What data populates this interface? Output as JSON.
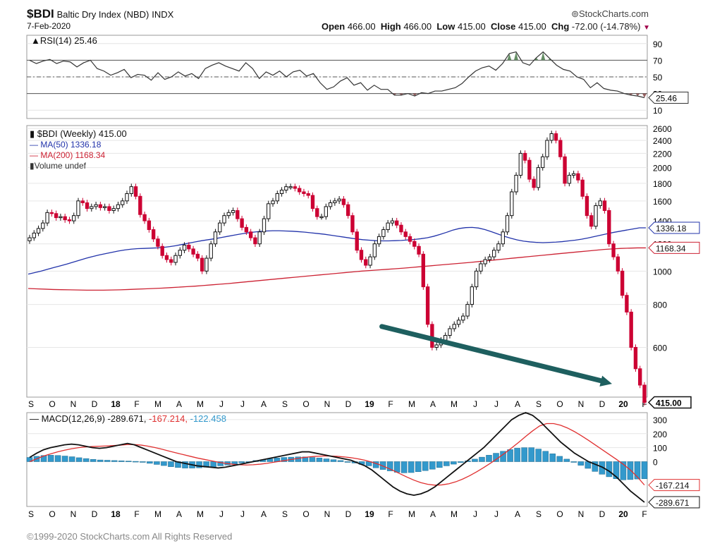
{
  "header": {
    "symbol": "$BDI",
    "name": "Baltic Dry Index (NBD)",
    "exchange": "INDX",
    "date": "7-Feb-2020",
    "brand": "StockCharts.com",
    "open_label": "Open",
    "open": "466.00",
    "high_label": "High",
    "high": "466.00",
    "low_label": "Low",
    "low": "415.00",
    "close_label": "Close",
    "close": "415.00",
    "chg_label": "Chg",
    "chg": "-72.00 (-14.78%)"
  },
  "footer": {
    "copyright": "©1999-2020 StockCharts.com All Rights Reserved"
  },
  "colors": {
    "up": "#ffffff",
    "down": "#cc0033",
    "ma50": "#2233aa",
    "ma200": "#cc2233",
    "macd": "#111111",
    "signal": "#e03030",
    "hist": "#3399cc",
    "arrow": "#1e5f5f",
    "rsi_fill": "#4a7a4a"
  },
  "chart_data": [
    {
      "type": "line",
      "title": "RSI(14) 25.46",
      "ylim": [
        0,
        100
      ],
      "ticks": [
        10,
        30,
        50,
        70,
        90
      ],
      "reference_lines": [
        30,
        50,
        70
      ],
      "last_label": "25.46",
      "values": [
        70,
        66,
        69,
        71,
        66,
        69,
        68,
        62,
        67,
        70,
        60,
        57,
        52,
        55,
        59,
        49,
        53,
        52,
        46,
        55,
        47,
        50,
        56,
        51,
        54,
        48,
        60,
        64,
        67,
        63,
        60,
        57,
        67,
        60,
        48,
        56,
        52,
        57,
        50,
        56,
        58,
        51,
        54,
        43,
        35,
        38,
        45,
        49,
        40,
        43,
        34,
        40,
        35,
        35,
        28,
        28,
        30,
        27,
        31,
        30,
        33,
        33,
        35,
        37,
        42,
        50,
        57,
        61,
        63,
        58,
        66,
        78,
        80,
        67,
        64,
        73,
        80,
        72,
        64,
        59,
        57,
        50,
        47,
        37,
        43,
        36,
        34,
        33,
        30,
        28,
        27,
        25
      ]
    },
    {
      "type": "candlestick",
      "title": "$BDI (Weekly) 415.00",
      "scale": "log",
      "ylim": [
        430,
        2650
      ],
      "ticks": [
        600,
        800,
        1000,
        1200,
        1400,
        1600,
        1800,
        2000,
        2200,
        2400,
        2600
      ],
      "series": [
        {
          "name": "MA(50) 1336.18",
          "last_label": "1336.18"
        },
        {
          "name": "MA(200) 1168.34",
          "last_label": "1168.34"
        },
        {
          "name": "Volume undef"
        }
      ],
      "last_label": "415.00",
      "close": [
        1250,
        1290,
        1330,
        1380,
        1480,
        1470,
        1430,
        1440,
        1410,
        1400,
        1450,
        1600,
        1580,
        1520,
        1540,
        1560,
        1530,
        1540,
        1500,
        1520,
        1560,
        1600,
        1680,
        1760,
        1650,
        1460,
        1400,
        1320,
        1240,
        1180,
        1110,
        1080,
        1060,
        1110,
        1150,
        1190,
        1160,
        1120,
        1090,
        1000,
        1090,
        1200,
        1300,
        1380,
        1450,
        1480,
        1500,
        1420,
        1340,
        1300,
        1250,
        1200,
        1300,
        1420,
        1570,
        1600,
        1680,
        1720,
        1760,
        1760,
        1740,
        1700,
        1680,
        1660,
        1520,
        1440,
        1440,
        1540,
        1580,
        1600,
        1620,
        1560,
        1450,
        1300,
        1150,
        1080,
        1040,
        1100,
        1200,
        1260,
        1320,
        1380,
        1400,
        1360,
        1300,
        1260,
        1220,
        1180,
        1120,
        900,
        700,
        600,
        610,
        630,
        650,
        680,
        700,
        720,
        740,
        800,
        900,
        1000,
        1050,
        1080,
        1100,
        1150,
        1200,
        1300,
        1450,
        1700,
        1900,
        2200,
        2100,
        1850,
        1750,
        2000,
        2150,
        2400,
        2510,
        2400,
        2150,
        1800,
        1900,
        1920,
        1840,
        1650,
        1450,
        1350,
        1550,
        1600,
        1500,
        1200,
        1100,
        1000,
        850,
        760,
        600,
        520,
        466,
        415
      ],
      "ma50": [
        980,
        990,
        1000,
        1012,
        1024,
        1036,
        1048,
        1062,
        1076,
        1090,
        1102,
        1114,
        1124,
        1134,
        1144,
        1152,
        1158,
        1162,
        1164,
        1166,
        1168,
        1172,
        1178,
        1186,
        1196,
        1206,
        1216,
        1226,
        1234,
        1242,
        1252,
        1262,
        1272,
        1282,
        1290,
        1298,
        1304,
        1308,
        1310,
        1310,
        1308,
        1306,
        1302,
        1298,
        1292,
        1286,
        1280,
        1272,
        1264,
        1256,
        1248,
        1240,
        1234,
        1230,
        1226,
        1224,
        1224,
        1226,
        1228,
        1232,
        1236,
        1242,
        1250,
        1262,
        1278,
        1296,
        1316,
        1330,
        1338,
        1340,
        1334,
        1320,
        1302,
        1282,
        1262,
        1246,
        1232,
        1222,
        1216,
        1212,
        1210,
        1212,
        1214,
        1218,
        1224,
        1230,
        1238,
        1248,
        1260,
        1272,
        1284,
        1296,
        1306,
        1316,
        1326,
        1336,
        1336
      ],
      "ma200": [
        890,
        888,
        886,
        884,
        883,
        882,
        881,
        880,
        880,
        880,
        881,
        882,
        884,
        886,
        888,
        890,
        892,
        895,
        898,
        901,
        904,
        908,
        912,
        916,
        920,
        925,
        930,
        935,
        940,
        945,
        950,
        955,
        960,
        965,
        970,
        975,
        980,
        985,
        990,
        995,
        1000,
        1004,
        1008,
        1012,
        1016,
        1020,
        1025,
        1030,
        1035,
        1040,
        1045,
        1050,
        1055,
        1060,
        1066,
        1072,
        1078,
        1084,
        1090,
        1096,
        1102,
        1108,
        1114,
        1120,
        1126,
        1132,
        1138,
        1144,
        1150,
        1156,
        1160,
        1164,
        1166,
        1168,
        1168
      ]
    },
    {
      "type": "line",
      "title": "MACD(12,26,9)",
      "series": [
        {
          "name": "-289.671",
          "last_label": "-289.671"
        },
        {
          "name": "-167.214",
          "last_label": "-167.214"
        },
        {
          "name": "-122.458"
        }
      ],
      "ylim": [
        -320,
        350
      ],
      "ticks": [
        300,
        200,
        100,
        0
      ],
      "macd": [
        30,
        60,
        85,
        100,
        110,
        120,
        125,
        120,
        110,
        100,
        95,
        100,
        110,
        120,
        130,
        120,
        100,
        80,
        60,
        40,
        20,
        0,
        -10,
        -20,
        -30,
        -35,
        -40,
        -45,
        -40,
        -30,
        -20,
        -10,
        0,
        10,
        20,
        30,
        40,
        50,
        60,
        70,
        70,
        60,
        50,
        40,
        30,
        20,
        10,
        -10,
        -30,
        -60,
        -100,
        -140,
        -180,
        -210,
        -230,
        -240,
        -230,
        -210,
        -180,
        -140,
        -100,
        -60,
        -20,
        20,
        60,
        100,
        150,
        200,
        250,
        300,
        330,
        350,
        330,
        290,
        240,
        190,
        140,
        100,
        60,
        30,
        0,
        -20,
        -40,
        -70,
        -110,
        -160,
        -210,
        -250,
        -290
      ],
      "signal": [
        0,
        20,
        40,
        55,
        70,
        82,
        92,
        100,
        105,
        108,
        110,
        112,
        115,
        118,
        122,
        122,
        118,
        110,
        100,
        88,
        75,
        62,
        50,
        38,
        26,
        16,
        6,
        -4,
        -12,
        -18,
        -22,
        -24,
        -22,
        -18,
        -12,
        -4,
        4,
        12,
        20,
        28,
        34,
        38,
        40,
        40,
        38,
        34,
        28,
        20,
        10,
        -4,
        -20,
        -40,
        -62,
        -86,
        -110,
        -132,
        -150,
        -162,
        -168,
        -166,
        -158,
        -144,
        -124,
        -100,
        -72,
        -42,
        -10,
        24,
        60,
        98,
        138,
        180,
        220,
        255,
        272,
        272,
        260,
        240,
        214,
        184,
        152,
        118,
        84,
        50,
        16,
        -20,
        -60,
        -110,
        -167
      ],
      "hist": [
        30,
        38,
        44,
        46,
        44,
        40,
        35,
        28,
        22,
        16,
        12,
        10,
        8,
        6,
        4,
        2,
        -4,
        -12,
        -20,
        -28,
        -36,
        -42,
        -46,
        -46,
        -44,
        -40,
        -36,
        -30,
        -24,
        -16,
        -8,
        0,
        8,
        14,
        20,
        26,
        30,
        32,
        34,
        34,
        30,
        26,
        20,
        14,
        8,
        0,
        -10,
        -20,
        -30,
        -44,
        -56,
        -66,
        -76,
        -80,
        -78,
        -72,
        -64,
        -54,
        -42,
        -30,
        -18,
        -6,
        6,
        18,
        32,
        46,
        60,
        74,
        86,
        96,
        100,
        100,
        90,
        74,
        56,
        38,
        18,
        -4,
        -26,
        -48,
        -70,
        -90,
        -108,
        -122,
        -130,
        -128,
        -124,
        -122
      ]
    }
  ],
  "xaxis": {
    "labels": [
      {
        "t": "S",
        "bold": false
      },
      {
        "t": "O",
        "bold": false
      },
      {
        "t": "N",
        "bold": false
      },
      {
        "t": "D",
        "bold": false
      },
      {
        "t": "18",
        "bold": true
      },
      {
        "t": "F",
        "bold": false
      },
      {
        "t": "M",
        "bold": false
      },
      {
        "t": "A",
        "bold": false
      },
      {
        "t": "M",
        "bold": false
      },
      {
        "t": "J",
        "bold": false
      },
      {
        "t": "J",
        "bold": false
      },
      {
        "t": "A",
        "bold": false
      },
      {
        "t": "S",
        "bold": false
      },
      {
        "t": "O",
        "bold": false
      },
      {
        "t": "N",
        "bold": false
      },
      {
        "t": "D",
        "bold": false
      },
      {
        "t": "19",
        "bold": true
      },
      {
        "t": "F",
        "bold": false
      },
      {
        "t": "M",
        "bold": false
      },
      {
        "t": "A",
        "bold": false
      },
      {
        "t": "M",
        "bold": false
      },
      {
        "t": "J",
        "bold": false
      },
      {
        "t": "J",
        "bold": false
      },
      {
        "t": "A",
        "bold": false
      },
      {
        "t": "S",
        "bold": false
      },
      {
        "t": "O",
        "bold": false
      },
      {
        "t": "N",
        "bold": false
      },
      {
        "t": "D",
        "bold": false
      },
      {
        "t": "20",
        "bold": true
      },
      {
        "t": "F",
        "bold": false
      }
    ]
  }
}
